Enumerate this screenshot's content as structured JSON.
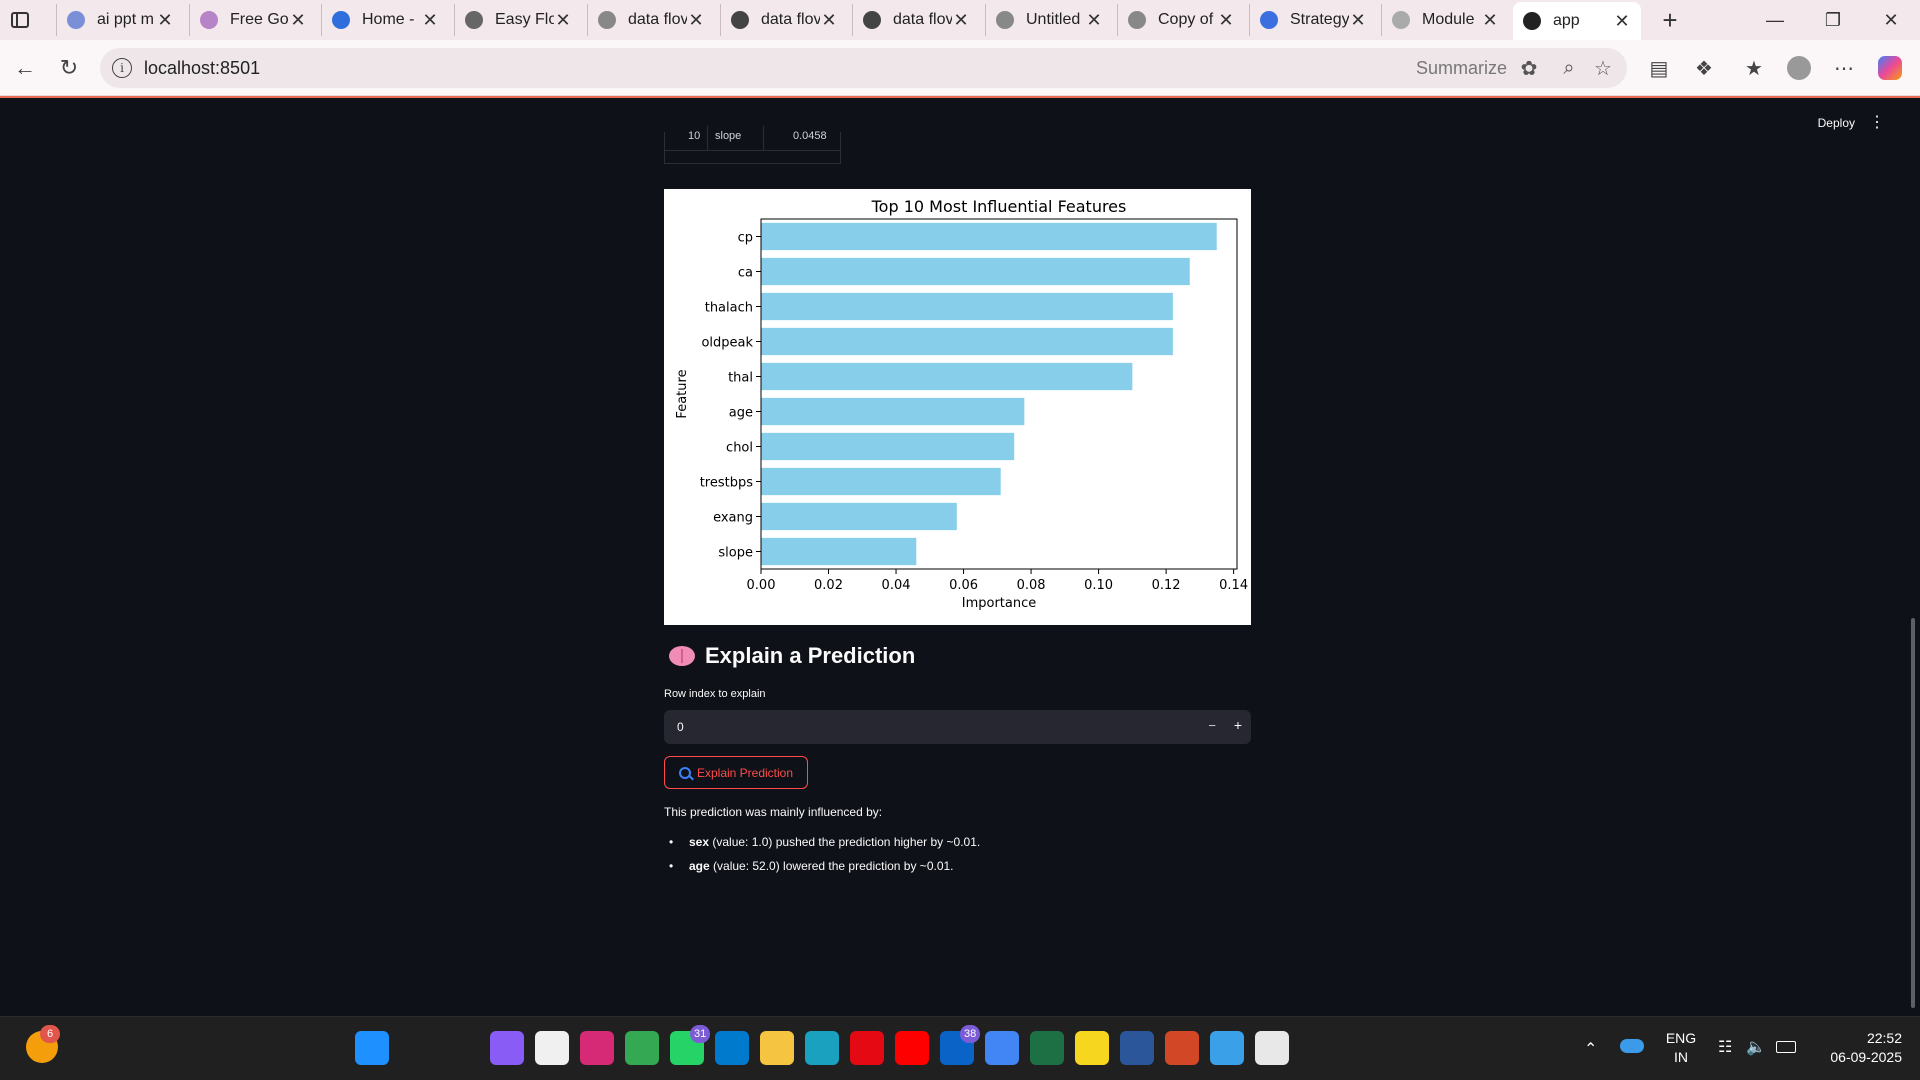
{
  "browser": {
    "tabs": [
      {
        "title": "ai ppt m",
        "color": "#7b8fd8"
      },
      {
        "title": "Free Goo",
        "color": "#b884c8"
      },
      {
        "title": "Home - ",
        "color": "#2f6fdd"
      },
      {
        "title": "Easy Flo",
        "color": "#666666"
      },
      {
        "title": "data flov",
        "color": "#888888"
      },
      {
        "title": "data flov",
        "color": "#444444"
      },
      {
        "title": "data flov",
        "color": "#444444"
      },
      {
        "title": "Untitled",
        "color": "#888888"
      },
      {
        "title": "Copy of ",
        "color": "#888888"
      },
      {
        "title": "Strategy",
        "color": "#3b6fe0"
      },
      {
        "title": "Module",
        "color": "#aaaaaa"
      },
      {
        "title": "app",
        "color": "#222222"
      }
    ],
    "active_tab_index": 11,
    "url": "localhost:8501",
    "summarize_label": "Summarize"
  },
  "app": {
    "header": {
      "deploy_label": "Deploy"
    },
    "dataframe_remnant": {
      "index": "10",
      "feature": "slope",
      "value": "0.0458"
    },
    "explain_section": {
      "title": "Explain a Prediction",
      "input_label": "Row index to explain",
      "input_value": "0",
      "button_label": "Explain Prediction",
      "result_intro": "This prediction was mainly influenced by:",
      "reasons": [
        {
          "feature": "sex",
          "detail": " (value: 1.0) pushed the prediction higher by ~0.01."
        },
        {
          "feature": "age",
          "detail": " (value: 52.0) lowered the prediction by ~0.01."
        }
      ]
    }
  },
  "chart_data": {
    "type": "bar",
    "orientation": "horizontal",
    "title": "Top 10 Most Influential Features",
    "xlabel": "Importance",
    "ylabel": "Feature",
    "categories": [
      "cp",
      "ca",
      "thalach",
      "oldpeak",
      "thal",
      "age",
      "chol",
      "trestbps",
      "exang",
      "slope"
    ],
    "values": [
      0.135,
      0.127,
      0.122,
      0.122,
      0.11,
      0.078,
      0.075,
      0.071,
      0.058,
      0.046
    ],
    "xlim": [
      0,
      0.141
    ],
    "xticks": [
      "0.00",
      "0.02",
      "0.04",
      "0.06",
      "0.08",
      "0.10",
      "0.12",
      "0.14"
    ],
    "bar_color": "#87ceeb",
    "grid": false
  },
  "taskbar": {
    "notif_badge": "6",
    "apps": [
      {
        "name": "windows-start",
        "color": "#1e90ff",
        "badge": ""
      },
      {
        "name": "search",
        "color": "#202020",
        "badge": ""
      },
      {
        "name": "task-view",
        "color": "#202020",
        "badge": ""
      },
      {
        "name": "copilot",
        "color": "#8a5cf6",
        "badge": ""
      },
      {
        "name": "microsoft-store",
        "color": "#f0f0f0",
        "badge": ""
      },
      {
        "name": "instagram",
        "color": "#d62976",
        "badge": ""
      },
      {
        "name": "chrome",
        "color": "#34a853",
        "badge": ""
      },
      {
        "name": "whatsapp",
        "color": "#25d366",
        "badge": "31"
      },
      {
        "name": "vscode",
        "color": "#007acc",
        "badge": ""
      },
      {
        "name": "file-explorer",
        "color": "#f5c542",
        "badge": ""
      },
      {
        "name": "edge",
        "color": "#1aa1c0",
        "badge": ""
      },
      {
        "name": "netflix",
        "color": "#e50914",
        "badge": ""
      },
      {
        "name": "youtube",
        "color": "#ff0000",
        "badge": ""
      },
      {
        "name": "outlook",
        "color": "#0a64c8",
        "badge": "38"
      },
      {
        "name": "chrome-profile",
        "color": "#4285f4",
        "badge": ""
      },
      {
        "name": "excel",
        "color": "#1d7044",
        "badge": ""
      },
      {
        "name": "sticky-notes",
        "color": "#f7d61f",
        "badge": ""
      },
      {
        "name": "word",
        "color": "#2b579a",
        "badge": ""
      },
      {
        "name": "powerpoint",
        "color": "#d24726",
        "badge": ""
      },
      {
        "name": "paint",
        "color": "#3aa0e8",
        "badge": ""
      },
      {
        "name": "snipping-tool",
        "color": "#e8e8e8",
        "badge": ""
      }
    ],
    "lang_line1": "ENG",
    "lang_line2": "IN",
    "time": "22:52",
    "date": "06-09-2025"
  }
}
